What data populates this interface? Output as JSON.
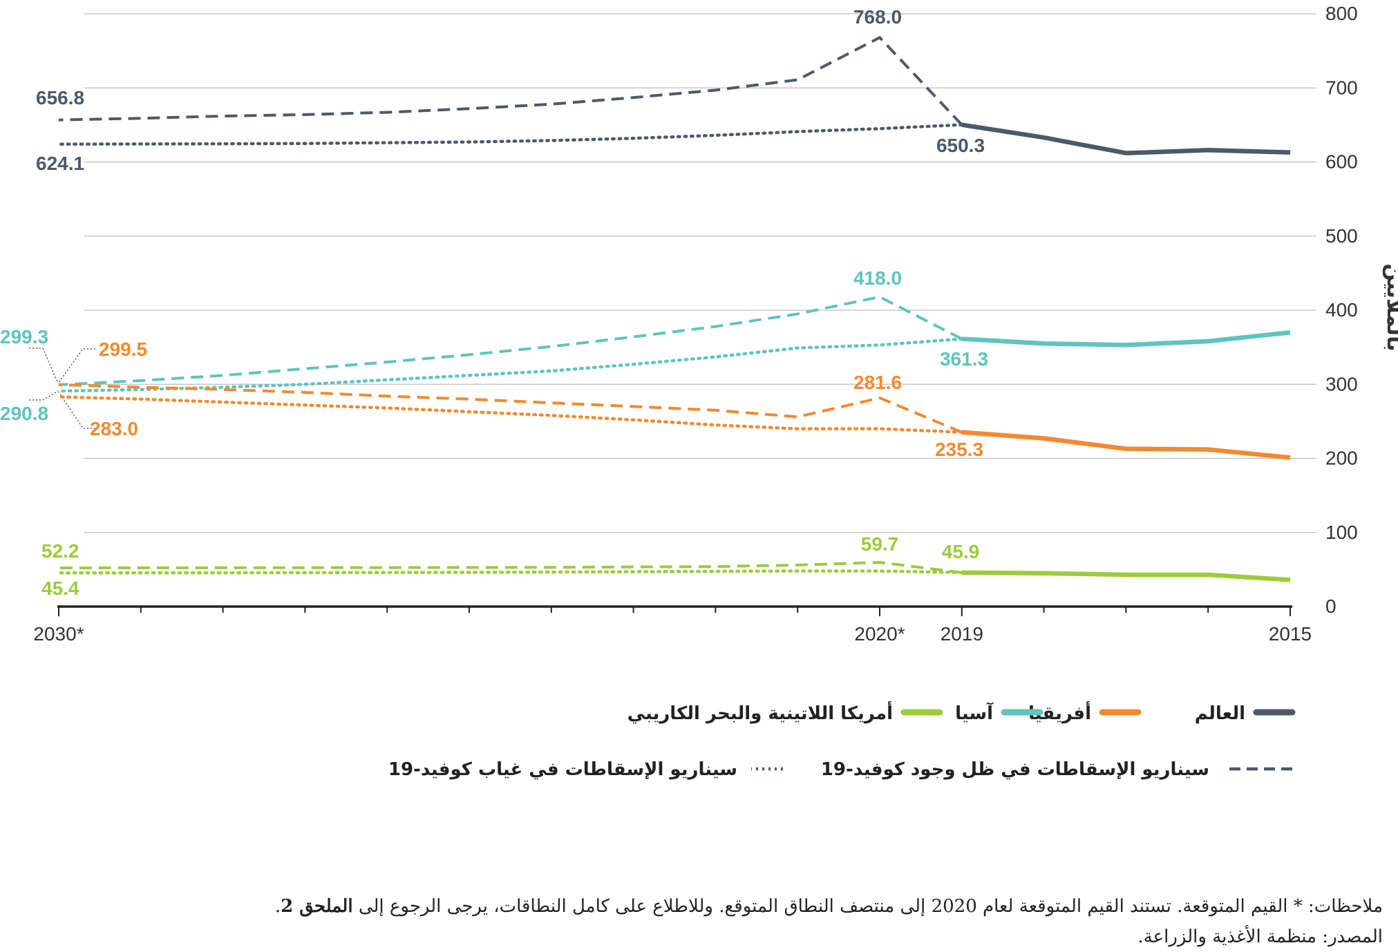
{
  "chart_data": {
    "type": "line",
    "ylabel": "بالملايين",
    "ylim": [
      0,
      800
    ],
    "yticks": [
      "0",
      "100",
      "200",
      "300",
      "400",
      "500",
      "600",
      "700",
      "800"
    ],
    "xticks": [
      "2015",
      "2019",
      "*2020",
      "*2030"
    ],
    "x": [
      2015,
      2016,
      2017,
      2018,
      2019,
      2020,
      2021,
      2022,
      2023,
      2024,
      2025,
      2026,
      2027,
      2028,
      2029,
      2030
    ],
    "colors": {
      "world": "#4a5a69",
      "africa": "#f28a2e",
      "asia": "#5ec4bf",
      "latam": "#9ccb3b"
    },
    "series": [
      {
        "key": "world",
        "name": "العالم",
        "style": "solid",
        "points": [
          [
            2015,
            613
          ],
          [
            2016,
            616
          ],
          [
            2017,
            612
          ],
          [
            2018,
            633
          ],
          [
            2019,
            650.3
          ]
        ]
      },
      {
        "key": "world",
        "name": "العالم",
        "style": "dashed",
        "points": [
          [
            2019,
            650.3
          ],
          [
            2020,
            768.0
          ],
          [
            2021,
            711
          ],
          [
            2022,
            697
          ],
          [
            2023,
            687
          ],
          [
            2024,
            678
          ],
          [
            2025,
            672
          ],
          [
            2026,
            667
          ],
          [
            2027,
            664
          ],
          [
            2028,
            662
          ],
          [
            2029,
            659
          ],
          [
            2030,
            656.8
          ]
        ]
      },
      {
        "key": "world",
        "name": "العالم",
        "style": "dotted",
        "points": [
          [
            2019,
            650.3
          ],
          [
            2020,
            645
          ],
          [
            2021,
            641
          ],
          [
            2022,
            636
          ],
          [
            2023,
            632
          ],
          [
            2024,
            629
          ],
          [
            2025,
            627
          ],
          [
            2026,
            626
          ],
          [
            2027,
            625
          ],
          [
            2028,
            624.6
          ],
          [
            2029,
            624.3
          ],
          [
            2030,
            624.1
          ]
        ]
      },
      {
        "key": "asia",
        "name": "آسيا",
        "style": "solid",
        "points": [
          [
            2015,
            370
          ],
          [
            2016,
            358
          ],
          [
            2017,
            353
          ],
          [
            2018,
            355
          ],
          [
            2019,
            361.3
          ]
        ]
      },
      {
        "key": "asia",
        "name": "آسيا",
        "style": "dashed",
        "points": [
          [
            2019,
            361.3
          ],
          [
            2020,
            418.0
          ],
          [
            2021,
            395
          ],
          [
            2022,
            378
          ],
          [
            2023,
            364
          ],
          [
            2024,
            351
          ],
          [
            2025,
            340
          ],
          [
            2026,
            330
          ],
          [
            2027,
            321
          ],
          [
            2028,
            312
          ],
          [
            2029,
            305
          ],
          [
            2030,
            299.3
          ]
        ]
      },
      {
        "key": "asia",
        "name": "آسيا",
        "style": "dotted",
        "points": [
          [
            2019,
            361.3
          ],
          [
            2020,
            353
          ],
          [
            2021,
            349
          ],
          [
            2022,
            337
          ],
          [
            2023,
            327
          ],
          [
            2024,
            318
          ],
          [
            2025,
            312
          ],
          [
            2026,
            306
          ],
          [
            2027,
            300
          ],
          [
            2028,
            296
          ],
          [
            2029,
            293
          ],
          [
            2030,
            290.8
          ]
        ]
      },
      {
        "key": "africa",
        "name": "أفريقيا",
        "style": "solid",
        "points": [
          [
            2015,
            201
          ],
          [
            2016,
            212
          ],
          [
            2017,
            213
          ],
          [
            2018,
            227
          ],
          [
            2019,
            235.3
          ]
        ]
      },
      {
        "key": "africa",
        "name": "أفريقيا",
        "style": "dashed",
        "points": [
          [
            2019,
            235.3
          ],
          [
            2020,
            281.6
          ],
          [
            2021,
            256
          ],
          [
            2022,
            265
          ],
          [
            2023,
            270
          ],
          [
            2024,
            275
          ],
          [
            2025,
            280
          ],
          [
            2026,
            284
          ],
          [
            2027,
            289
          ],
          [
            2028,
            293
          ],
          [
            2029,
            296
          ],
          [
            2030,
            299.5
          ]
        ]
      },
      {
        "key": "africa",
        "name": "أفريقيا",
        "style": "dotted",
        "points": [
          [
            2019,
            235.3
          ],
          [
            2020,
            240
          ],
          [
            2021,
            240
          ],
          [
            2022,
            245
          ],
          [
            2023,
            252
          ],
          [
            2024,
            258
          ],
          [
            2025,
            263
          ],
          [
            2026,
            268
          ],
          [
            2027,
            272
          ],
          [
            2028,
            276
          ],
          [
            2029,
            280
          ],
          [
            2030,
            283.0
          ]
        ]
      },
      {
        "key": "latam",
        "name": "أمريكا اللاتينية والبحر الكاريبي",
        "style": "solid",
        "points": [
          [
            2015,
            36
          ],
          [
            2016,
            43
          ],
          [
            2017,
            43
          ],
          [
            2018,
            45
          ],
          [
            2019,
            45.9
          ]
        ]
      },
      {
        "key": "latam",
        "name": "أمريكا اللاتينية والبحر الكاريبي",
        "style": "dashed",
        "points": [
          [
            2019,
            45.9
          ],
          [
            2020,
            59.7
          ],
          [
            2021,
            56
          ],
          [
            2022,
            54
          ],
          [
            2023,
            53.5
          ],
          [
            2024,
            53
          ],
          [
            2025,
            52.8
          ],
          [
            2026,
            52.6
          ],
          [
            2027,
            52.5
          ],
          [
            2028,
            52.4
          ],
          [
            2029,
            52.3
          ],
          [
            2030,
            52.2
          ]
        ]
      },
      {
        "key": "latam",
        "name": "أمريكا اللاتينية والبحر الكاريبي",
        "style": "dotted",
        "points": [
          [
            2019,
            45.9
          ],
          [
            2020,
            48
          ],
          [
            2021,
            48
          ],
          [
            2022,
            47.5
          ],
          [
            2023,
            47
          ],
          [
            2024,
            46.5
          ],
          [
            2025,
            46.2
          ],
          [
            2026,
            46
          ],
          [
            2027,
            45.8
          ],
          [
            2028,
            45.6
          ],
          [
            2029,
            45.5
          ],
          [
            2030,
            45.4
          ]
        ]
      }
    ],
    "annotations": [
      {
        "text": "768.0",
        "color": "world"
      },
      {
        "text": "650.3",
        "color": "world"
      },
      {
        "text": "656.8",
        "color": "world"
      },
      {
        "text": "624.1",
        "color": "world"
      },
      {
        "text": "418.0",
        "color": "asia"
      },
      {
        "text": "361.3",
        "color": "asia"
      },
      {
        "text": "299.3",
        "color": "asia"
      },
      {
        "text": "290.8",
        "color": "asia"
      },
      {
        "text": "281.6",
        "color": "africa"
      },
      {
        "text": "235.3",
        "color": "africa"
      },
      {
        "text": "299.5",
        "color": "africa"
      },
      {
        "text": "283.0",
        "color": "africa"
      },
      {
        "text": "59.7",
        "color": "latam"
      },
      {
        "text": "45.9",
        "color": "latam"
      },
      {
        "text": "52.2",
        "color": "latam"
      },
      {
        "text": "45.4",
        "color": "latam"
      }
    ],
    "legend": {
      "regions": [
        {
          "key": "world",
          "label": "العالم"
        },
        {
          "key": "africa",
          "label": "أفريقيا"
        },
        {
          "key": "asia",
          "label": "آسيا"
        },
        {
          "key": "latam",
          "label": "أمريكا اللاتينية والبحر الكاريبي"
        }
      ],
      "scenarios": [
        {
          "style": "dashed",
          "label": "سيناريو الإسقاطات في ظل وجود كوفيد-19"
        },
        {
          "style": "dotted",
          "label": "سيناريو الإسقاطات في غياب كوفيد-19"
        }
      ],
      "scenario_color": "#4a5a69"
    }
  },
  "notes": {
    "prefix": "ملاحظات: * القيم المتوقعة. تستند القيم المتوقعة لعام 2020 إلى منتصف النطاق المتوقع. وللاطلاع على كامل النطاقات، يرجى الرجوع إلى",
    "annex_bold": "الملحق 2",
    "suffix": "."
  },
  "source": "المصدر: منظمة الأغذية والزراعة."
}
